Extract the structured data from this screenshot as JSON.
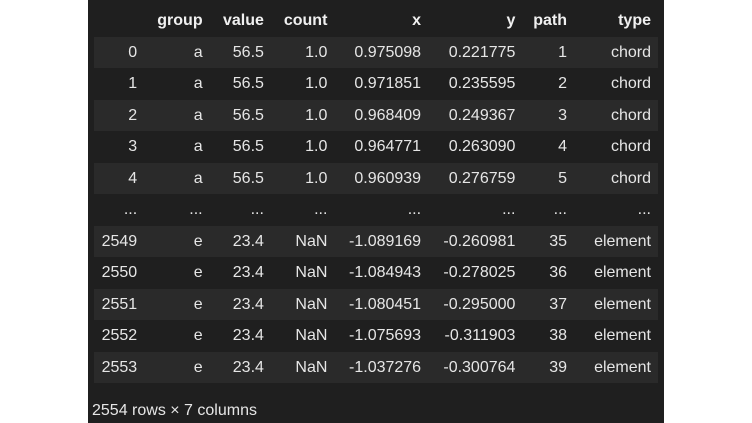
{
  "table": {
    "columns": [
      "",
      "group",
      "value",
      "count",
      "x",
      "y",
      "path",
      "type"
    ],
    "rows": [
      [
        "0",
        "a",
        "56.5",
        "1.0",
        "0.975098",
        "0.221775",
        "1",
        "chord"
      ],
      [
        "1",
        "a",
        "56.5",
        "1.0",
        "0.971851",
        "0.235595",
        "2",
        "chord"
      ],
      [
        "2",
        "a",
        "56.5",
        "1.0",
        "0.968409",
        "0.249367",
        "3",
        "chord"
      ],
      [
        "3",
        "a",
        "56.5",
        "1.0",
        "0.964771",
        "0.263090",
        "4",
        "chord"
      ],
      [
        "4",
        "a",
        "56.5",
        "1.0",
        "0.960939",
        "0.276759",
        "5",
        "chord"
      ],
      [
        "...",
        "...",
        "...",
        "...",
        "...",
        "...",
        "...",
        "..."
      ],
      [
        "2549",
        "e",
        "23.4",
        "NaN",
        "-1.089169",
        "-0.260981",
        "35",
        "element"
      ],
      [
        "2550",
        "e",
        "23.4",
        "NaN",
        "-1.084943",
        "-0.278025",
        "36",
        "element"
      ],
      [
        "2551",
        "e",
        "23.4",
        "NaN",
        "-1.080451",
        "-0.295000",
        "37",
        "element"
      ],
      [
        "2552",
        "e",
        "23.4",
        "NaN",
        "-1.075693",
        "-0.311903",
        "38",
        "element"
      ],
      [
        "2553",
        "e",
        "23.4",
        "NaN",
        "-1.037276",
        "-0.300764",
        "39",
        "element"
      ]
    ]
  },
  "footer": {
    "shape_text": "2554 rows × 7 columns"
  }
}
